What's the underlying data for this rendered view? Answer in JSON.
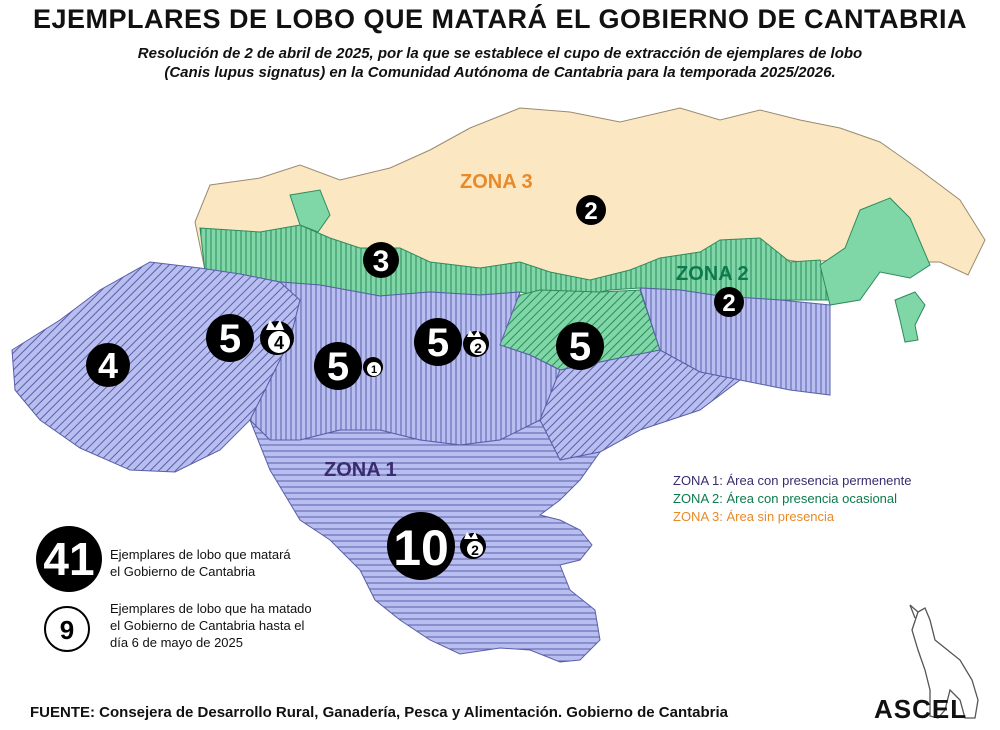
{
  "title": "EJEMPLARES DE LOBO QUE MATARÁ EL GOBIERNO DE CANTABRIA",
  "subtitle_line1": "Resolución de 2 de abril de 2025, por la que se establece el cupo de extracción de ejemplares de lobo",
  "subtitle_line2": "(Canis lupus signatus) en la Comunidad Autónoma de Cantabria para la temporada 2025/2026.",
  "zones": {
    "zona1": {
      "label": "ZONA 1",
      "color": "#3a2c6e",
      "fill": "#b8bef0",
      "legend_key": "ZONA 1:",
      "legend_text": "Área con presencia permenente"
    },
    "zona2": {
      "label": "ZONA 2",
      "color": "#0d7a4e",
      "fill": "#7fd6a6",
      "legend_key": "ZONA 2:",
      "legend_text": "Área con presencia ocasional"
    },
    "zona3": {
      "label": "ZONA 3",
      "color": "#e88a2a",
      "fill": "#fbe8c2",
      "legend_key": "ZONA 3:",
      "legend_text": "Área sin presencia"
    }
  },
  "quotas": [
    "2",
    "3",
    "2",
    "4",
    "5",
    "5",
    "5",
    "5",
    "10"
  ],
  "killed": [
    "4",
    "1",
    "2",
    "2"
  ],
  "legend": {
    "total_value": "41",
    "total_line1": "Ejemplares de lobo que matará",
    "total_line2": "el Gobierno de Cantabria",
    "killed_value": "9",
    "killed_line1": "Ejemplares de lobo que ha matado",
    "killed_line2": "el Gobierno de Cantabria hasta el",
    "killed_line3": "día 6 de mayo de 2025"
  },
  "source": "FUENTE: Consejera de Desarrollo Rural, Ganadería, Pesca y Alimentación. Gobierno de Cantabria",
  "logo": "ASCEL"
}
